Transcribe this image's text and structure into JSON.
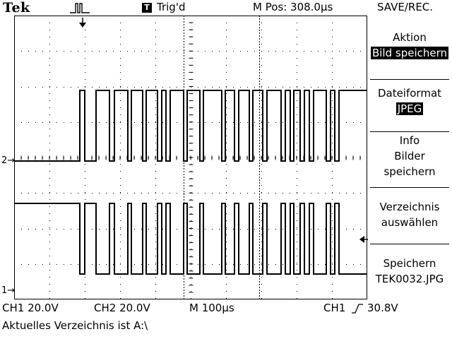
{
  "header": {
    "brand": "Tek",
    "trigger_box": "T",
    "trigger_status": "Trig'd",
    "m_pos": "M Pos: 308.0µs",
    "menu_title": "SAVE/REC."
  },
  "menu": {
    "items": [
      {
        "label": "Aktion",
        "value": "Bild speichern"
      },
      {
        "label": "Dateiformat",
        "value": "JPEG"
      },
      {
        "lines": [
          "Info",
          "Bilder",
          "speichern"
        ]
      },
      {
        "lines": [
          "Verzeichnis",
          "auswählen"
        ]
      },
      {
        "lines": [
          "Speichern",
          "TEK0032.JPG"
        ]
      }
    ]
  },
  "channels": {
    "ch2_marker": "2→",
    "ch1_marker": "1→"
  },
  "status": {
    "ch1": "CH1  20.0V",
    "ch2": "CH2  20.0V",
    "timebase": "M 100µs",
    "trigger_source": "CH1",
    "trigger_level": "30.8V",
    "message": "Aktuelles Verzeichnis ist A:\\"
  },
  "colors": {
    "trace": "#000000",
    "grid": "#000000",
    "background": "#ffffff"
  }
}
